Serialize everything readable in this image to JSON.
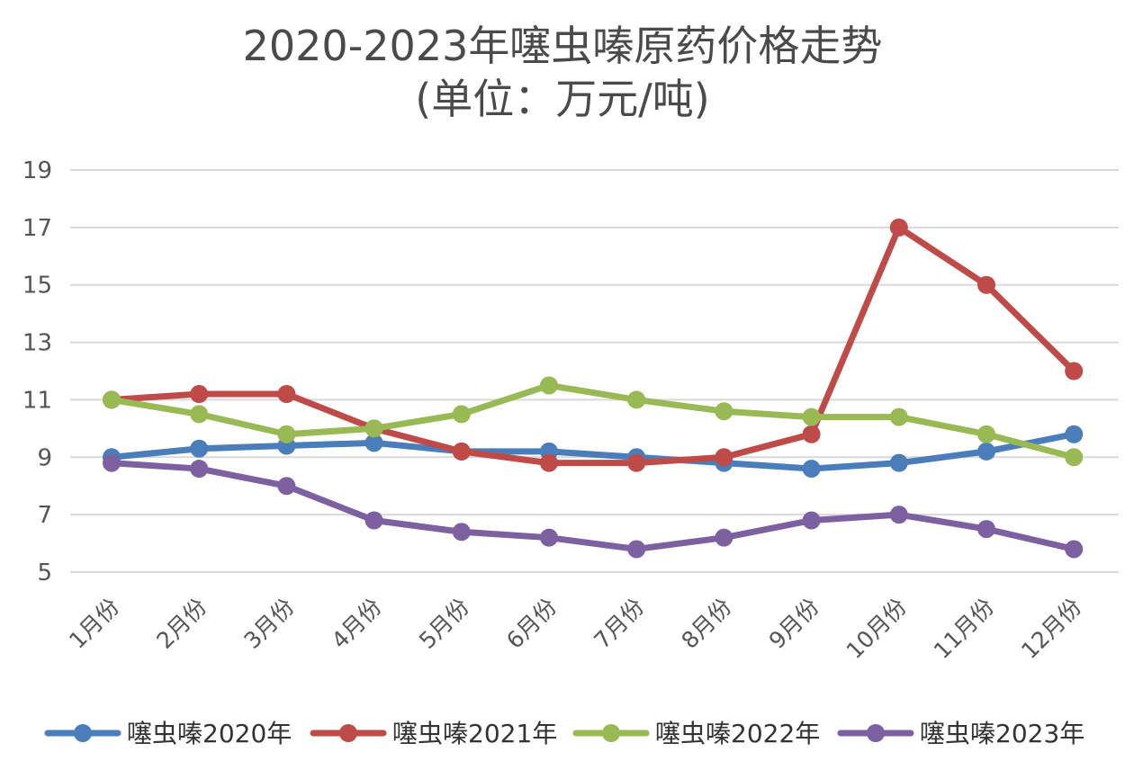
{
  "chart_data": {
    "type": "line",
    "title": "2020-2023年噻虫嗪原药价格走势",
    "subtitle": "(单位：万元/吨)",
    "xlabel": "",
    "ylabel": "",
    "categories": [
      "1月份",
      "2月份",
      "3月份",
      "4月份",
      "5月份",
      "6月份",
      "7月份",
      "8月份",
      "9月份",
      "10月份",
      "11月份",
      "12月份"
    ],
    "ylim": [
      5,
      19
    ],
    "yticks": [
      5,
      7,
      9,
      11,
      13,
      15,
      17,
      19
    ],
    "grid": true,
    "legend_position": "bottom",
    "series": [
      {
        "name": "噻虫嗪2020年",
        "color": "#4a7ebb",
        "values": [
          9.0,
          9.3,
          9.4,
          9.5,
          9.2,
          9.2,
          9.0,
          8.8,
          8.6,
          8.8,
          9.2,
          9.8
        ]
      },
      {
        "name": "噻虫嗪2021年",
        "color": "#be4b48",
        "values": [
          11.0,
          11.2,
          11.2,
          10.0,
          9.2,
          8.8,
          8.8,
          9.0,
          9.8,
          17.0,
          15.0,
          12.0
        ]
      },
      {
        "name": "噻虫嗪2022年",
        "color": "#98b954",
        "values": [
          11.0,
          10.5,
          9.8,
          10.0,
          10.5,
          11.5,
          11.0,
          10.6,
          10.4,
          10.4,
          9.8,
          9.0
        ]
      },
      {
        "name": "噻虫嗪2023年",
        "color": "#7d60a0",
        "values": [
          8.8,
          8.6,
          8.0,
          6.8,
          6.4,
          6.2,
          5.8,
          6.2,
          6.8,
          7.0,
          6.5,
          5.8
        ]
      }
    ]
  }
}
